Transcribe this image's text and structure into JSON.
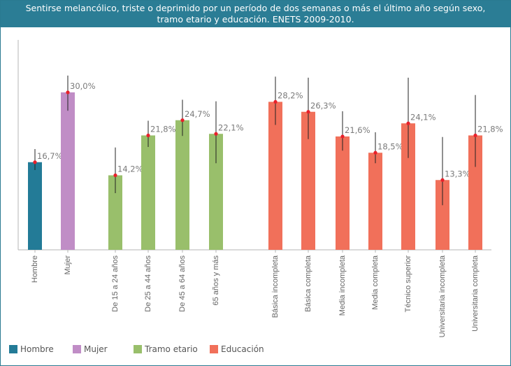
{
  "title": {
    "line1": "Sentirse melancólico, triste o deprimido por un período de dos semanas o más el último año según sexo,",
    "line2": "tramo etario y educación. ENETS 2009-2010."
  },
  "colors": {
    "header": "#2b7d95",
    "Hombre": "#237b97",
    "Mujer": "#c08dc6",
    "Tramo etario": "#99bf6b",
    "Educación": "#f1705a",
    "marker": "#e8202a",
    "errorbar": "#222222"
  },
  "legend": {
    "items": [
      {
        "label": "Hombre",
        "color_key": "Hombre"
      },
      {
        "label": "Mujer",
        "color_key": "Mujer"
      },
      {
        "label": "Tramo etario",
        "color_key": "Tramo etario"
      },
      {
        "label": "Educación",
        "color_key": "Educación"
      }
    ]
  },
  "chart_data": {
    "type": "bar",
    "ylim": [
      0,
      40
    ],
    "grid": false,
    "legend_position": "bottom",
    "categories": [
      "Hombre",
      "Mujer",
      "De 15 a 24 años",
      "De 25 a 44 años",
      "De 45 a 64 años",
      "65 años y más",
      "Básica incompleta",
      "Básica completa",
      "Media incompleta",
      "Media completa",
      "Técnico superior",
      "Universitaria incompleta",
      "Universitaria completa"
    ],
    "groups": [
      "Hombre",
      "Mujer",
      "Tramo etario",
      "Tramo etario",
      "Tramo etario",
      "Tramo etario",
      "Educación",
      "Educación",
      "Educación",
      "Educación",
      "Educación",
      "Educación",
      "Educación"
    ],
    "values": [
      16.7,
      30.0,
      14.2,
      21.8,
      24.7,
      22.1,
      28.2,
      26.3,
      21.6,
      18.5,
      24.1,
      13.3,
      21.8
    ],
    "value_labels": [
      "16,7%",
      "30,0%",
      "14,2%",
      "21,8%",
      "24,7%",
      "22,1%",
      "28,2%",
      "26,3%",
      "21,6%",
      "18,5%",
      "24,1%",
      "13,3%",
      "21,8%"
    ],
    "ci_low": [
      15.2,
      26.5,
      10.8,
      19.6,
      21.7,
      16.5,
      23.8,
      21.1,
      18.9,
      16.5,
      17.5,
      8.5,
      15.8
    ],
    "ci_high": [
      19.2,
      33.2,
      19.5,
      24.6,
      28.6,
      28.3,
      33.0,
      32.8,
      26.4,
      22.4,
      32.8,
      21.5,
      29.5
    ]
  }
}
